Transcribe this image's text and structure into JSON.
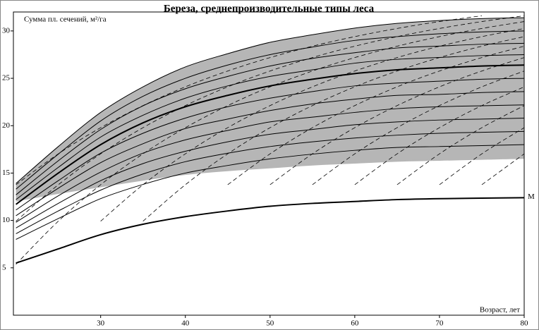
{
  "chart_data": {
    "type": "line",
    "title": "Береза, среднепроизводительные типы леса",
    "y_label": "Сумма пл. сечений, м²/га",
    "x_label": "Возраст, лет",
    "x": [
      20,
      25,
      30,
      35,
      40,
      45,
      50,
      55,
      60,
      65,
      70,
      75,
      80
    ],
    "xlim": [
      19.7,
      80
    ],
    "ylim": [
      0,
      32
    ],
    "xticks": [
      30,
      40,
      50,
      60,
      70,
      80
    ],
    "yticks": [
      5,
      10,
      15,
      20,
      25,
      30
    ],
    "grid": false,
    "band": {
      "color": "#a9a9a9",
      "upper": [
        13.9,
        17.8,
        21.4,
        24.1,
        26.2,
        27.6,
        28.8,
        29.6,
        30.3,
        30.8,
        31.1,
        31.3,
        31.4
      ],
      "lower": [
        12.0,
        12.8,
        13.5,
        14.2,
        14.8,
        15.2,
        15.5,
        15.8,
        16.0,
        16.2,
        16.3,
        16.4,
        16.5
      ]
    },
    "series": [
      {
        "name": "M",
        "color": "#000000",
        "width": 2,
        "values": [
          5.5,
          7.0,
          8.5,
          9.6,
          10.4,
          11.0,
          11.5,
          11.8,
          12.0,
          12.2,
          12.3,
          12.35,
          12.4
        ]
      },
      {
        "color": "#000000",
        "width": 2,
        "values": [
          11.7,
          15.0,
          18.0,
          20.3,
          22.0,
          23.2,
          24.2,
          24.9,
          25.5,
          25.9,
          26.1,
          26.3,
          26.4
        ]
      },
      {
        "color": "#000000",
        "width": 1,
        "values": [
          13.9,
          17.8,
          21.4,
          24.1,
          26.2,
          27.6,
          28.8,
          29.6,
          30.3,
          30.8,
          31.1,
          31.3,
          31.4
        ]
      },
      {
        "color": "#000000",
        "width": 1,
        "values": [
          13.3,
          17.0,
          20.5,
          23.1,
          25.0,
          26.4,
          27.5,
          28.3,
          29.0,
          29.4,
          29.7,
          29.9,
          30.0
        ]
      },
      {
        "color": "#000000",
        "width": 1,
        "values": [
          12.7,
          16.3,
          19.6,
          22.1,
          23.9,
          25.2,
          26.3,
          27.1,
          27.7,
          28.2,
          28.4,
          28.6,
          28.7
        ]
      },
      {
        "color": "#000000",
        "width": 1,
        "values": [
          12.2,
          15.6,
          18.8,
          21.1,
          22.9,
          24.2,
          25.2,
          25.9,
          26.6,
          27.0,
          27.2,
          27.4,
          27.5
        ]
      },
      {
        "color": "#000000",
        "width": 1,
        "values": [
          11.1,
          14.2,
          17.1,
          19.2,
          20.8,
          22.0,
          22.9,
          23.6,
          24.2,
          24.5,
          24.7,
          24.9,
          25.0
        ]
      },
      {
        "color": "#000000",
        "width": 1,
        "values": [
          10.5,
          13.4,
          16.1,
          18.1,
          19.7,
          20.7,
          21.6,
          22.3,
          22.8,
          23.2,
          23.3,
          23.5,
          23.6
        ]
      },
      {
        "color": "#000000",
        "width": 1,
        "values": [
          9.8,
          12.6,
          15.1,
          17.1,
          18.5,
          19.5,
          20.4,
          20.9,
          21.4,
          21.8,
          22.0,
          22.1,
          22.2
        ]
      },
      {
        "color": "#000000",
        "width": 1,
        "values": [
          9.2,
          11.8,
          14.2,
          16.0,
          17.3,
          18.3,
          19.1,
          19.6,
          20.1,
          20.4,
          20.6,
          20.7,
          20.8
        ]
      },
      {
        "color": "#000000",
        "width": 1,
        "values": [
          8.6,
          11.0,
          13.2,
          14.9,
          16.2,
          17.1,
          17.8,
          18.3,
          18.7,
          19.0,
          19.2,
          19.3,
          19.4
        ]
      },
      {
        "color": "#000000",
        "width": 1,
        "values": [
          8.0,
          10.2,
          12.3,
          13.8,
          15.0,
          15.8,
          16.5,
          17.0,
          17.4,
          17.7,
          17.8,
          17.9,
          18.0
        ]
      },
      {
        "color": "#000000",
        "width": 0.8,
        "dashed": true,
        "values": [
          13.77,
          17.03,
          19.79,
          22.12,
          24.1,
          25.77,
          27.19,
          28.39,
          29.4,
          30.26,
          30.99,
          31.6,
          null
        ]
      },
      {
        "color": "#000000",
        "width": 0.8,
        "dashed": true,
        "values": [
          9.92,
          13.77,
          17.03,
          19.79,
          22.12,
          24.1,
          25.77,
          27.19,
          28.39,
          29.4,
          30.26,
          30.99,
          31.6
        ]
      },
      {
        "color": "#000000",
        "width": 0.8,
        "dashed": true,
        "values": [
          5.37,
          9.92,
          13.77,
          17.03,
          19.79,
          22.12,
          24.1,
          25.77,
          27.19,
          28.39,
          29.4,
          30.26,
          30.99
        ]
      },
      {
        "color": "#000000",
        "width": 0.8,
        "dashed": true,
        "values": [
          null,
          null,
          9.92,
          13.77,
          17.03,
          19.79,
          22.12,
          24.1,
          25.77,
          27.19,
          28.39,
          29.4,
          30.26
        ]
      },
      {
        "color": "#000000",
        "width": 0.8,
        "dashed": true,
        "values": [
          null,
          null,
          null,
          9.92,
          13.77,
          17.03,
          19.79,
          22.12,
          24.1,
          25.77,
          27.19,
          28.39,
          29.4
        ]
      },
      {
        "color": "#000000",
        "width": 0.8,
        "dashed": true,
        "values": [
          null,
          null,
          null,
          null,
          null,
          13.77,
          17.03,
          19.79,
          22.12,
          24.1,
          25.77,
          27.19,
          28.39
        ]
      },
      {
        "color": "#000000",
        "width": 0.8,
        "dashed": true,
        "values": [
          null,
          null,
          null,
          null,
          null,
          null,
          13.77,
          17.03,
          19.79,
          22.12,
          24.1,
          25.77,
          27.19
        ]
      },
      {
        "color": "#000000",
        "width": 0.8,
        "dashed": true,
        "values": [
          null,
          null,
          null,
          null,
          null,
          null,
          null,
          13.77,
          17.03,
          19.79,
          22.12,
          24.1,
          25.77
        ]
      },
      {
        "color": "#000000",
        "width": 0.8,
        "dashed": true,
        "values": [
          null,
          null,
          null,
          null,
          null,
          null,
          null,
          null,
          13.77,
          17.03,
          19.79,
          22.12,
          24.1
        ]
      },
      {
        "color": "#000000",
        "width": 0.8,
        "dashed": true,
        "values": [
          null,
          null,
          null,
          null,
          null,
          null,
          null,
          null,
          null,
          13.77,
          17.03,
          19.79,
          22.12
        ]
      },
      {
        "color": "#000000",
        "width": 0.8,
        "dashed": true,
        "values": [
          null,
          null,
          null,
          null,
          null,
          null,
          null,
          null,
          null,
          null,
          13.77,
          17.03,
          19.79
        ]
      },
      {
        "color": "#000000",
        "width": 0.8,
        "dashed": true,
        "values": [
          null,
          null,
          null,
          null,
          null,
          null,
          null,
          null,
          null,
          null,
          null,
          13.77,
          17.03
        ]
      }
    ]
  }
}
